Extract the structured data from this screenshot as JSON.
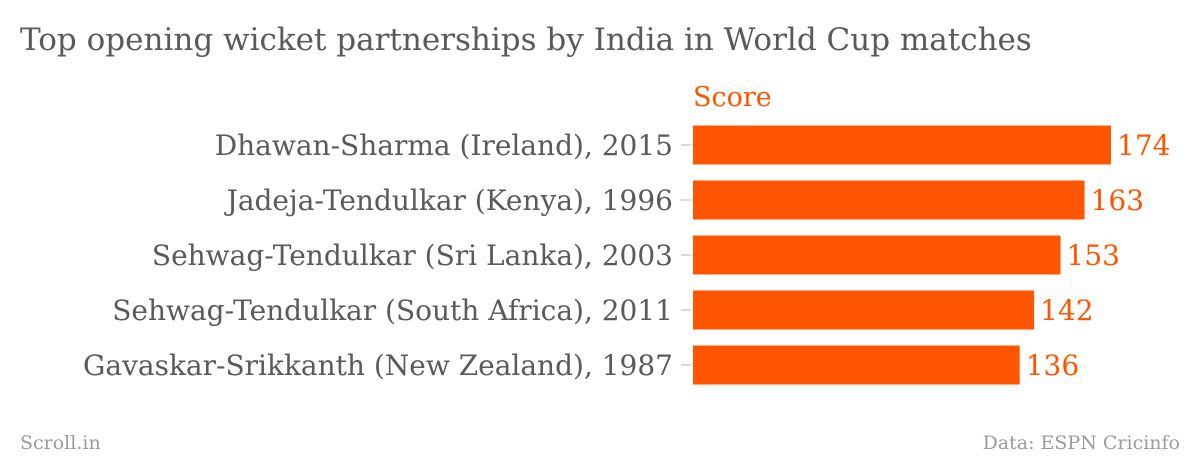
{
  "chart_data": {
    "type": "bar",
    "orientation": "horizontal",
    "title": "Top opening wicket partnerships by India in World Cup matches",
    "series_label": "Score",
    "categories": [
      "Dhawan-Sharma (Ireland), 2015",
      "Jadeja-Tendulkar (Kenya), 1996",
      "Sehwag-Tendulkar (Sri Lanka), 2003",
      "Sehwag-Tendulkar (South Africa), 2011",
      "Gavaskar-Srikkanth (New Zealand), 1987"
    ],
    "values": [
      174,
      163,
      153,
      142,
      136
    ],
    "xlim": [
      0,
      174
    ],
    "grid": false
  },
  "footer": {
    "source_left": "Scroll.in",
    "source_right": "Data: ESPN Cricinfo"
  },
  "colors": {
    "bar": "#ff5500",
    "value_label": "#ff5500",
    "category_label": "#5a5a5a",
    "tick": "#cccccc"
  }
}
